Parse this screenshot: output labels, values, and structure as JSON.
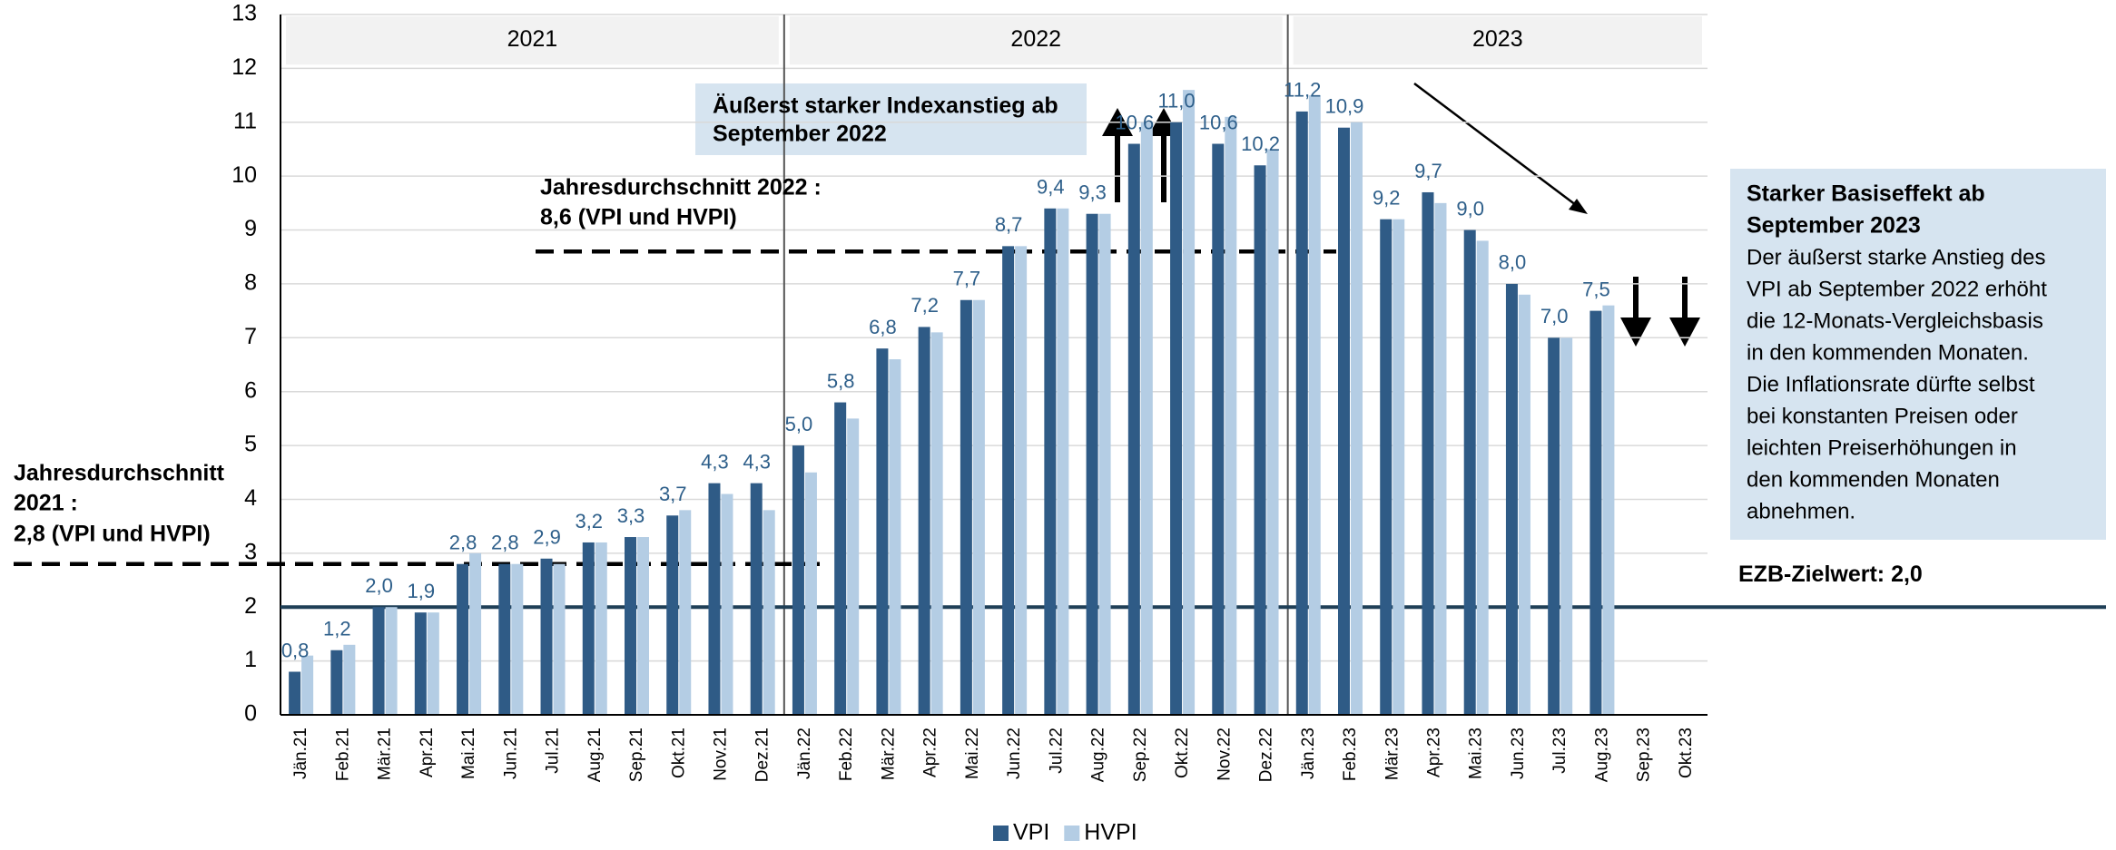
{
  "chart_data": {
    "type": "bar",
    "categories": [
      "Jän.21",
      "Feb.21",
      "Mär.21",
      "Apr.21",
      "Mai.21",
      "Jun.21",
      "Jul.21",
      "Aug.21",
      "Sep.21",
      "Okt.21",
      "Nov.21",
      "Dez.21",
      "Jän.22",
      "Feb.22",
      "Mär.22",
      "Apr.22",
      "Mai.22",
      "Jun.22",
      "Jul.22",
      "Aug.22",
      "Sep.22",
      "Okt.22",
      "Nov.22",
      "Dez.22",
      "Jän.23",
      "Feb.23",
      "Mär.23",
      "Apr.23",
      "Mai.23",
      "Jun.23",
      "Jul.23",
      "Aug.23",
      "Sep.23",
      "Okt.23"
    ],
    "years": [
      "2021",
      "2022",
      "2023"
    ],
    "series": [
      {
        "name": "VPI",
        "color": "#2f5b86",
        "values": [
          0.8,
          1.2,
          2.0,
          1.9,
          2.8,
          2.8,
          2.9,
          3.2,
          3.3,
          3.7,
          4.3,
          4.3,
          5.0,
          5.8,
          6.8,
          7.2,
          7.7,
          8.7,
          9.4,
          9.3,
          10.6,
          11.0,
          10.6,
          10.2,
          11.2,
          10.9,
          9.2,
          9.7,
          9.0,
          8.0,
          7.0,
          7.5,
          null,
          null
        ],
        "value_labels": [
          "0,8",
          "1,2",
          "2,0",
          "1,9",
          "2,8",
          "2,8",
          "2,9",
          "3,2",
          "3,3",
          "3,7",
          "4,3",
          "4,3",
          "5,0",
          "5,8",
          "6,8",
          "7,2",
          "7,7",
          "8,7",
          "9,4",
          "9,3",
          "10,6",
          "11,0",
          "10,6",
          "10,2",
          "11,2",
          "10,9",
          "9,2",
          "9,7",
          "9,0",
          "8,0",
          "7,0",
          "7,5",
          null,
          null
        ]
      },
      {
        "name": "HVPI",
        "color": "#b4cde4",
        "values": [
          1.1,
          1.3,
          2.0,
          1.9,
          3.0,
          2.8,
          2.8,
          3.2,
          3.3,
          3.8,
          4.1,
          3.8,
          4.5,
          5.5,
          6.6,
          7.1,
          7.7,
          8.7,
          9.4,
          9.3,
          11.0,
          11.6,
          11.1,
          10.5,
          11.5,
          11.0,
          9.2,
          9.5,
          8.8,
          7.8,
          7.0,
          7.6,
          null,
          null
        ]
      }
    ],
    "ylim": [
      0,
      13
    ],
    "yticks": [
      0,
      1,
      2,
      3,
      4,
      5,
      6,
      7,
      8,
      9,
      10,
      11,
      12,
      13
    ],
    "grid": true,
    "reference_lines": [
      {
        "value": 2.8,
        "label": [
          "Jahresdurchschnitt",
          "2021 :",
          "2,8 (VPI und HVPI)"
        ]
      },
      {
        "value": 8.6,
        "label": [
          "Jahresdurchschnitt 2022 :",
          "8,6 (VPI und HVPI)"
        ]
      },
      {
        "value": 2.0,
        "label": [
          "EZB-Zielwert: 2,0"
        ]
      }
    ],
    "annotations": [
      {
        "label": [
          "Äußerst starker Indexanstieg ab",
          "September 2022"
        ]
      },
      {
        "title": [
          "Starker Basiseffekt ab",
          "September 2023"
        ],
        "label": [
          "Der äußerst starke Anstieg des",
          "VPI ab September 2022 erhöht",
          "die 12-Monats-Vergleichsbasis",
          "in den kommenden Monaten.",
          "Die Inflationsrate dürfte selbst",
          "bei konstanten Preisen oder",
          "leichten Preiserhöhungen in",
          "den kommenden Monaten",
          "abnehmen."
        ]
      }
    ]
  }
}
